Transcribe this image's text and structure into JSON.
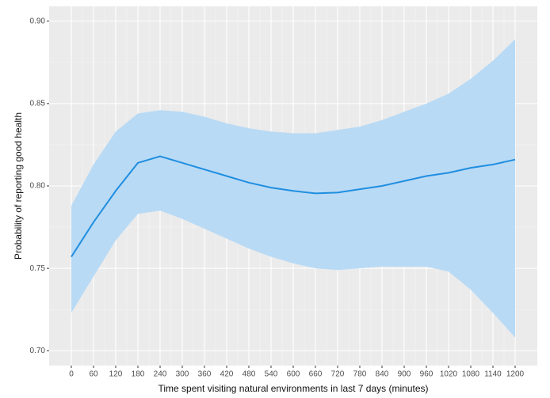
{
  "chart_data": {
    "type": "line",
    "x_label": "Time spent visiting natural environments in last 7 days (minutes)",
    "y_label": "Probability of reporting good health",
    "x": [
      0,
      60,
      120,
      180,
      240,
      300,
      360,
      420,
      480,
      540,
      600,
      660,
      720,
      780,
      840,
      900,
      960,
      1020,
      1080,
      1140,
      1200
    ],
    "series": [
      {
        "color": "#1f8ee0",
        "band_color": "#b9daf5",
        "values": [
          0.757,
          0.778,
          0.797,
          0.814,
          0.818,
          0.814,
          0.81,
          0.806,
          0.802,
          0.799,
          0.797,
          0.7955,
          0.796,
          0.798,
          0.8,
          0.803,
          0.806,
          0.808,
          0.811,
          0.813,
          0.816
        ],
        "upper": [
          0.788,
          0.813,
          0.833,
          0.844,
          0.846,
          0.845,
          0.842,
          0.838,
          0.835,
          0.833,
          0.832,
          0.832,
          0.834,
          0.836,
          0.84,
          0.845,
          0.85,
          0.856,
          0.865,
          0.876,
          0.889
        ],
        "lower": [
          0.723,
          0.745,
          0.767,
          0.783,
          0.785,
          0.78,
          0.774,
          0.768,
          0.762,
          0.757,
          0.753,
          0.75,
          0.749,
          0.75,
          0.751,
          0.751,
          0.751,
          0.748,
          0.737,
          0.723,
          0.708
        ]
      }
    ],
    "xlim": [
      -60,
      1260
    ],
    "ylim": [
      0.691,
      0.909
    ],
    "xticks": [
      0,
      60,
      120,
      180,
      240,
      300,
      360,
      420,
      480,
      540,
      600,
      660,
      720,
      780,
      840,
      900,
      960,
      1020,
      1080,
      1140,
      1200
    ],
    "yticks": [
      {
        "value": 0.7,
        "label": "0.70"
      },
      0.75,
      {
        "value": 0.8,
        "label": "0.80"
      },
      0.85,
      {
        "value": 0.9,
        "label": "0.90"
      }
    ],
    "grid": true
  }
}
